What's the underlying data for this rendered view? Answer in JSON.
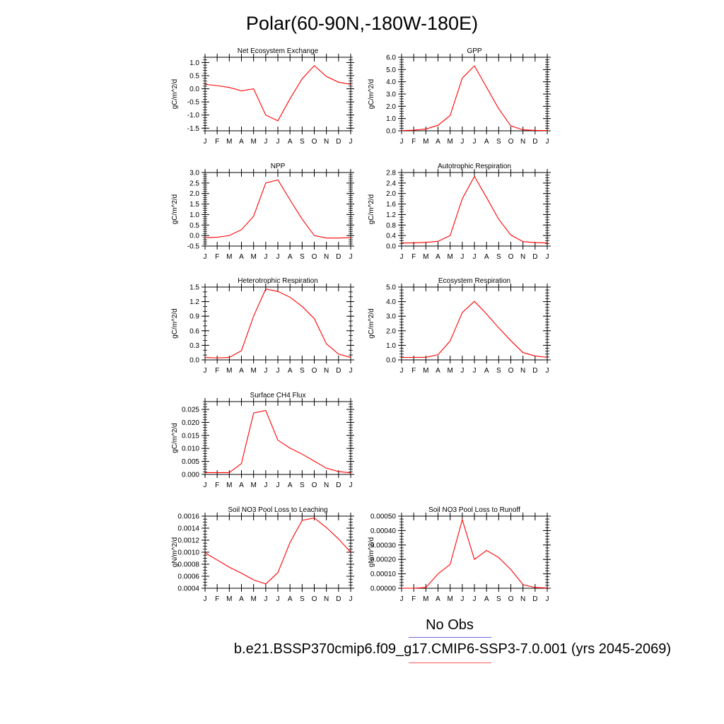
{
  "page": {
    "title": "Polar(60-90N,-180W-180E)"
  },
  "legend": {
    "obs_label": "No Obs",
    "obs_color": "#6a6ae6",
    "case_label": "b.e21.BSSP370cmip6.f09_g17.CMIP6-SSP3-7.0.001 (yrs 2045-2069)",
    "case_color": "#ff0000"
  },
  "chart_data": [
    {
      "type": "line",
      "title": "Net Ecosystem Exchange",
      "ylabel": "gC/m^2/d",
      "categories": [
        "J",
        "F",
        "M",
        "A",
        "M",
        "J",
        "J",
        "A",
        "S",
        "O",
        "N",
        "D",
        "J"
      ],
      "ylim": [
        -1.6,
        1.2
      ],
      "yticks": [
        -1.5,
        -1.0,
        -0.5,
        0.0,
        0.5,
        1.0
      ],
      "yticklabels": [
        "-1.5",
        "-1.0",
        "-0.5",
        "0.0",
        "0.5",
        "1.0"
      ],
      "yminor": 0.1,
      "values": [
        0.17,
        0.12,
        0.05,
        -0.08,
        0.0,
        -1.0,
        -1.22,
        -0.38,
        0.38,
        0.88,
        0.47,
        0.25,
        0.17
      ]
    },
    {
      "type": "line",
      "title": "GPP",
      "ylabel": "gC/m^2/d",
      "categories": [
        "J",
        "F",
        "M",
        "A",
        "M",
        "J",
        "J",
        "A",
        "S",
        "O",
        "N",
        "D",
        "J"
      ],
      "ylim": [
        0,
        6
      ],
      "yticks": [
        0,
        1,
        2,
        3,
        4,
        5,
        6
      ],
      "yticklabels": [
        "0.0",
        "1.0",
        "2.0",
        "3.0",
        "4.0",
        "5.0",
        "6.0"
      ],
      "yminor": 0.2,
      "values": [
        0.02,
        0.05,
        0.15,
        0.45,
        1.25,
        4.3,
        5.3,
        3.55,
        1.8,
        0.4,
        0.08,
        0.03,
        0.02
      ]
    },
    {
      "type": "line",
      "title": "NPP",
      "ylabel": "gC/m^2/d",
      "categories": [
        "J",
        "F",
        "M",
        "A",
        "M",
        "J",
        "J",
        "A",
        "S",
        "O",
        "N",
        "D",
        "J"
      ],
      "ylim": [
        -0.5,
        3.0
      ],
      "yticks": [
        -0.5,
        0.0,
        0.5,
        1.0,
        1.5,
        2.0,
        2.5,
        3.0
      ],
      "yticklabels": [
        "-0.5",
        "0.0",
        "0.5",
        "1.0",
        "1.5",
        "2.0",
        "2.5",
        "3.0"
      ],
      "yminor": 0.1,
      "values": [
        -0.1,
        -0.08,
        0.0,
        0.28,
        0.92,
        2.5,
        2.65,
        1.7,
        0.78,
        0.0,
        -0.12,
        -0.12,
        -0.1
      ]
    },
    {
      "type": "line",
      "title": "Autotrophic Respiration",
      "ylabel": "gC/m^2/d",
      "categories": [
        "J",
        "F",
        "M",
        "A",
        "M",
        "J",
        "J",
        "A",
        "S",
        "O",
        "N",
        "D",
        "J"
      ],
      "ylim": [
        0,
        2.8
      ],
      "yticks": [
        0,
        0.4,
        0.8,
        1.2,
        1.6,
        2.0,
        2.4,
        2.8
      ],
      "yticklabels": [
        "0.0",
        "0.4",
        "0.8",
        "1.2",
        "1.6",
        "2.0",
        "2.4",
        "2.8"
      ],
      "yminor": 0.1,
      "values": [
        0.12,
        0.12,
        0.14,
        0.18,
        0.4,
        1.8,
        2.65,
        1.85,
        1.02,
        0.42,
        0.17,
        0.13,
        0.12
      ]
    },
    {
      "type": "line",
      "title": "Heterotrophic Respiration",
      "ylabel": "gC/m^2/d",
      "categories": [
        "J",
        "F",
        "M",
        "A",
        "M",
        "J",
        "J",
        "A",
        "S",
        "O",
        "N",
        "D",
        "J"
      ],
      "ylim": [
        0,
        1.5
      ],
      "yticks": [
        0,
        0.3,
        0.6,
        0.9,
        1.2,
        1.5
      ],
      "yticklabels": [
        "0.0",
        "0.3",
        "0.6",
        "0.9",
        "1.2",
        "1.5"
      ],
      "yminor": 0.1,
      "values": [
        0.05,
        0.04,
        0.05,
        0.19,
        0.9,
        1.46,
        1.41,
        1.29,
        1.1,
        0.85,
        0.33,
        0.12,
        0.05
      ]
    },
    {
      "type": "line",
      "title": "Ecosystem Respiration",
      "ylabel": "gC/m^2/d",
      "categories": [
        "J",
        "F",
        "M",
        "A",
        "M",
        "J",
        "J",
        "A",
        "S",
        "O",
        "N",
        "D",
        "J"
      ],
      "ylim": [
        0,
        5
      ],
      "yticks": [
        0,
        1,
        2,
        3,
        4,
        5
      ],
      "yticklabels": [
        "0.0",
        "1.0",
        "2.0",
        "3.0",
        "4.0",
        "5.0"
      ],
      "yminor": 0.2,
      "values": [
        0.17,
        0.17,
        0.18,
        0.35,
        1.3,
        3.25,
        4.02,
        3.15,
        2.2,
        1.32,
        0.5,
        0.27,
        0.17
      ]
    },
    {
      "type": "line",
      "title": "Surface CH4 Flux",
      "ylabel": "gC/m^2/d",
      "categories": [
        "J",
        "F",
        "M",
        "A",
        "M",
        "J",
        "J",
        "A",
        "S",
        "O",
        "N",
        "D",
        "J"
      ],
      "ylim": [
        0,
        0.028
      ],
      "yticks": [
        0,
        0.005,
        0.01,
        0.015,
        0.02,
        0.025
      ],
      "yticklabels": [
        "0.000",
        "0.005",
        "0.010",
        "0.015",
        "0.020",
        "0.025"
      ],
      "yminor": 0.001,
      "values": [
        0.0007,
        0.0007,
        0.0007,
        0.0042,
        0.0236,
        0.0246,
        0.0132,
        0.0101,
        0.0078,
        0.0051,
        0.0024,
        0.0011,
        0.0006
      ]
    },
    {
      "type": "line",
      "title": "Soil NO3 Pool Loss to Leaching",
      "ylabel": "gN/m^2/d",
      "categories": [
        "J",
        "F",
        "M",
        "A",
        "M",
        "J",
        "J",
        "A",
        "S",
        "O",
        "N",
        "D",
        "J"
      ],
      "ylim": [
        0.0004,
        0.0016
      ],
      "yticks": [
        0.0004,
        0.0006,
        0.0008,
        0.001,
        0.0012,
        0.0014,
        0.0016
      ],
      "yticklabels": [
        "0.0004",
        "0.0006",
        "0.0008",
        "0.0010",
        "0.0012",
        "0.0014",
        "0.0016"
      ],
      "yminor": 5e-05,
      "values": [
        0.00099,
        0.00087,
        0.00075,
        0.00065,
        0.00054,
        0.00047,
        0.00066,
        0.00116,
        0.00153,
        0.00157,
        0.00141,
        0.00122,
        0.001
      ]
    },
    {
      "type": "line",
      "title": "Soil NO3 Pool Loss to Runoff",
      "ylabel": "gN/m^2/d",
      "categories": [
        "J",
        "F",
        "M",
        "A",
        "M",
        "J",
        "J",
        "A",
        "S",
        "O",
        "N",
        "D",
        "J"
      ],
      "ylim": [
        0,
        0.0005
      ],
      "yticks": [
        0,
        0.0001,
        0.0002,
        0.0003,
        0.0004,
        0.0005
      ],
      "yticklabels": [
        "0.00000",
        "0.00010",
        "0.00020",
        "0.00030",
        "0.00040",
        "0.00050"
      ],
      "yminor": 2e-05,
      "values": [
        0.0,
        0.0,
        5e-06,
        0.0001,
        0.000165,
        0.000475,
        0.0002,
        0.000262,
        0.000213,
        0.00013,
        2.5e-05,
        5e-06,
        2e-06
      ]
    }
  ]
}
